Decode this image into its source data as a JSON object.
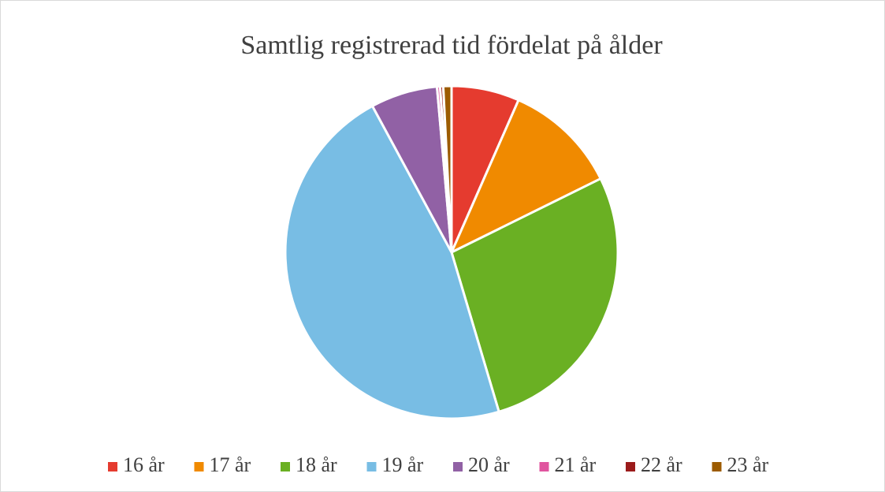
{
  "chart_data": {
    "type": "pie",
    "title": "Samtlig registrerad tid fördelat på ålder",
    "categories": [
      "16 år",
      "17 år",
      "18 år",
      "19 år",
      "20 år",
      "21 år",
      "22 år",
      "23 år"
    ],
    "values": [
      6.6,
      11.1,
      27.7,
      46.7,
      6.5,
      0.3,
      0.3,
      0.8
    ],
    "colors": [
      "#e53b2f",
      "#f08a00",
      "#6ab023",
      "#78bde4",
      "#9161a5",
      "#e0559f",
      "#9b1b1b",
      "#9c5b00"
    ],
    "legend": "bottom"
  }
}
